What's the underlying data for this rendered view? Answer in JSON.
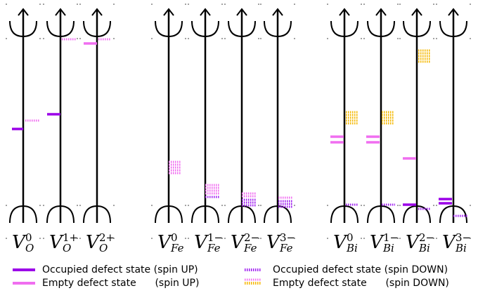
{
  "columns": [
    {
      "base": "V",
      "sup": "0",
      "sub": "O"
    },
    {
      "base": "V",
      "sup": "1+",
      "sub": "O"
    },
    {
      "base": "V",
      "sup": "2+",
      "sub": "O"
    },
    {
      "base": "V",
      "sup": "0",
      "sub": "Fe"
    },
    {
      "base": "V",
      "sup": "1−",
      "sub": "Fe"
    },
    {
      "base": "V",
      "sup": "2−",
      "sub": "Fe"
    },
    {
      "base": "V",
      "sup": "3−",
      "sub": "Fe"
    },
    {
      "base": "V",
      "sup": "0",
      "sub": "Bi"
    },
    {
      "base": "V",
      "sup": "1−",
      "sub": "Bi"
    },
    {
      "base": "V",
      "sup": "2−",
      "sub": "Bi"
    },
    {
      "base": "V",
      "sup": "3−",
      "sub": "Bi"
    }
  ],
  "legend": [
    "Occupied defect state (spin UP)",
    "Empty defect state      (spin UP)",
    "Occupied defect state (spin DOWN)",
    "Empty defect state      (spin DOWN)"
  ]
}
